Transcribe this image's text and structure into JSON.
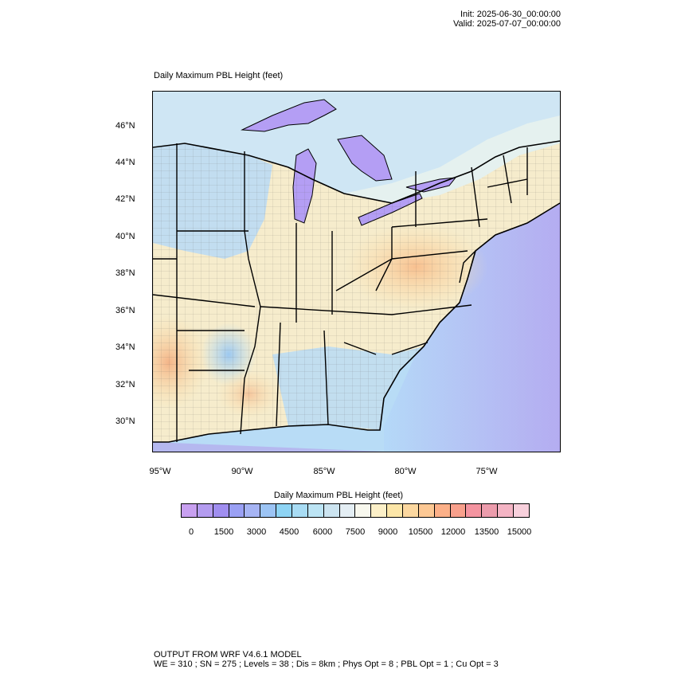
{
  "header": {
    "init": "Init: 2025-06-30_00:00:00",
    "valid": "Valid: 2025-07-07_00:00:00"
  },
  "map": {
    "title": "Daily Maximum PBL Height   (feet)",
    "lat_ticks": [
      "46°N",
      "44°N",
      "42°N",
      "40°N",
      "38°N",
      "36°N",
      "34°N",
      "32°N",
      "30°N"
    ],
    "lon_ticks": [
      "95°W",
      "90°W",
      "85°W",
      "80°W",
      "75°W"
    ]
  },
  "legend": {
    "title": "Daily Maximum PBL Height  (feet)",
    "labels": [
      "0",
      "1500",
      "3000",
      "4500",
      "6000",
      "7500",
      "9000",
      "10500",
      "12000",
      "13500",
      "15000"
    ],
    "colors": [
      "#c8a0f0",
      "#b49cf0",
      "#a08ef0",
      "#9aa0f4",
      "#a6b4f4",
      "#9cc4f4",
      "#8ed4f4",
      "#a8dcf4",
      "#bce4f4",
      "#cce4f0",
      "#e4eef4",
      "#f8f8ee",
      "#fcf0c8",
      "#fce6a8",
      "#fcd8a0",
      "#fcc894",
      "#fcb088",
      "#f8a08c",
      "#f494a0",
      "#ec9cac",
      "#f4b4c4",
      "#f8d0dc"
    ]
  },
  "footer": {
    "line1": "OUTPUT FROM WRF V4.6.1 MODEL",
    "line2": "WE = 310 ; SN = 275 ; Levels = 38 ; Dis = 8km ; Phys Opt = 8 ; PBL Opt = 1 ; Cu Opt = 3"
  }
}
